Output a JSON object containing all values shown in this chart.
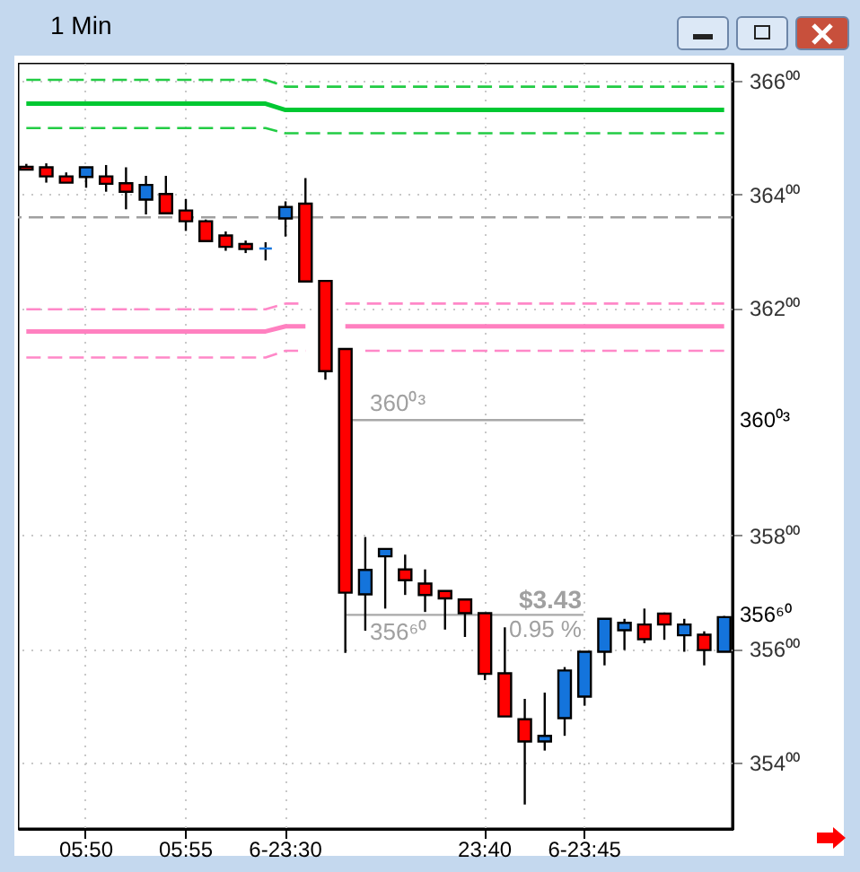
{
  "chart_data": {
    "type": "candlestick",
    "title": "1 Min",
    "categories": [
      null,
      null,
      null,
      "05:50",
      null,
      null,
      null,
      null,
      "05:55",
      null,
      null,
      null,
      null,
      "6-23:30",
      null,
      null,
      null,
      null,
      null,
      null,
      null,
      null,
      null,
      "23:40",
      null,
      null,
      null,
      null,
      "6-23:45",
      null,
      null,
      null,
      null,
      null,
      null,
      null
    ],
    "ohlc": [
      [
        364.49,
        364.54,
        364.44,
        364.44
      ],
      [
        364.48,
        364.55,
        364.21,
        364.32
      ],
      [
        364.32,
        364.39,
        364.21,
        364.21
      ],
      [
        364.31,
        364.48,
        364.12,
        364.48
      ],
      [
        364.32,
        364.52,
        364.05,
        364.19
      ],
      [
        364.2,
        364.48,
        363.74,
        364.05
      ],
      [
        363.91,
        364.33,
        363.65,
        364.17
      ],
      [
        364.01,
        364.33,
        363.65,
        363.67
      ],
      [
        363.72,
        363.92,
        363.36,
        363.53
      ],
      [
        363.53,
        363.56,
        363.18,
        363.18
      ],
      [
        363.28,
        363.35,
        363.01,
        363.08
      ],
      [
        363.13,
        363.19,
        362.97,
        363.04
      ],
      [
        363.05,
        363.16,
        362.84,
        363.05
      ],
      [
        363.58,
        363.88,
        363.26,
        363.78
      ],
      [
        363.84,
        364.29,
        362.47,
        362.47
      ],
      [
        362.48,
        362.48,
        360.74,
        360.89
      ],
      [
        361.28,
        361.28,
        355.93,
        356.99
      ],
      [
        356.96,
        357.97,
        356.32,
        357.39
      ],
      [
        357.63,
        357.76,
        356.71,
        357.76
      ],
      [
        357.4,
        357.66,
        356.95,
        357.21
      ],
      [
        357.15,
        357.4,
        356.65,
        356.95
      ],
      [
        357.02,
        357.02,
        356.34,
        356.89
      ],
      [
        356.87,
        356.87,
        356.21,
        356.63
      ],
      [
        356.63,
        356.63,
        355.45,
        355.56
      ],
      [
        355.57,
        356.38,
        354.81,
        354.81
      ],
      [
        354.76,
        355.12,
        353.26,
        354.37
      ],
      [
        354.37,
        355.23,
        354.21,
        354.47
      ],
      [
        354.78,
        355.68,
        354.47,
        355.62
      ],
      [
        355.16,
        355.95,
        355.0,
        355.95
      ],
      [
        355.95,
        356.53,
        355.71,
        356.53
      ],
      [
        356.33,
        356.53,
        355.98,
        356.46
      ],
      [
        356.43,
        356.71,
        356.1,
        356.17
      ],
      [
        356.62,
        356.64,
        356.16,
        356.43
      ],
      [
        356.24,
        356.53,
        355.95,
        356.43
      ],
      [
        356.25,
        356.31,
        355.71,
        355.98
      ],
      [
        355.95,
        356.58,
        355.95,
        356.56
      ]
    ],
    "colors": [
      "#ff0000",
      "#ff0000",
      "#ff0000",
      "#1474dc",
      "#ff0000",
      "#ff0000",
      "#1474dc",
      "#ff0000",
      "#ff0000",
      "#ff0000",
      "#ff0000",
      "#ff0000",
      "#1474dc",
      "#1474dc",
      "#ff0000",
      "#ff0000",
      "#ff0000",
      "#1474dc",
      "#1474dc",
      "#ff0000",
      "#ff0000",
      "#ff0000",
      "#ff0000",
      "#ff0000",
      "#ff0000",
      "#ff0000",
      "#1474dc",
      "#1474dc",
      "#1474dc",
      "#1474dc",
      "#1474dc",
      "#ff0000",
      "#ff0000",
      "#1474dc",
      "#ff0000",
      "#1474dc"
    ],
    "series": [
      {
        "type": "line",
        "color": "#22cc44",
        "line_style": "dashed",
        "values": [
          366.02,
          366.02,
          366.02,
          366.02,
          366.02,
          366.02,
          366.02,
          366.02,
          366.02,
          366.02,
          366.02,
          366.02,
          366.02,
          365.9,
          365.9,
          365.9,
          365.9,
          365.9,
          365.9,
          365.9,
          365.9,
          365.9,
          365.9,
          365.9,
          365.9,
          365.9,
          365.9,
          365.9,
          365.9,
          365.9,
          365.9,
          365.9,
          365.9,
          365.9,
          365.9,
          365.9
        ]
      },
      {
        "type": "line",
        "color": "#00c832",
        "line_style": "solid",
        "values": [
          365.6,
          365.6,
          365.6,
          365.6,
          365.6,
          365.6,
          365.6,
          365.6,
          365.6,
          365.6,
          365.6,
          365.6,
          365.6,
          365.49,
          365.49,
          365.49,
          365.49,
          365.49,
          365.49,
          365.49,
          365.49,
          365.49,
          365.49,
          365.49,
          365.49,
          365.49,
          365.49,
          365.49,
          365.49,
          365.49,
          365.49,
          365.49,
          365.49,
          365.49,
          365.49,
          365.49
        ]
      },
      {
        "type": "line",
        "color": "#22cc44",
        "line_style": "dashed",
        "values": [
          365.17,
          365.17,
          365.17,
          365.17,
          365.17,
          365.17,
          365.17,
          365.17,
          365.17,
          365.17,
          365.17,
          365.17,
          365.17,
          365.08,
          365.08,
          365.08,
          365.08,
          365.08,
          365.08,
          365.08,
          365.08,
          365.08,
          365.08,
          365.08,
          365.08,
          365.08,
          365.08,
          365.08,
          365.08,
          365.08,
          365.08,
          365.08,
          365.08,
          365.08,
          365.08,
          365.08
        ]
      },
      {
        "type": "line",
        "color": "#ff88c8",
        "line_style": "dashed",
        "values": [
          361.98,
          361.98,
          361.98,
          361.98,
          361.98,
          361.98,
          361.98,
          361.98,
          361.98,
          361.98,
          361.98,
          361.98,
          361.98,
          362.08,
          362.08,
          null,
          362.08,
          362.08,
          362.08,
          362.08,
          362.08,
          362.08,
          362.08,
          362.08,
          362.08,
          362.08,
          362.08,
          362.08,
          362.08,
          362.08,
          362.08,
          362.08,
          362.08,
          362.08,
          362.08,
          362.08
        ]
      },
      {
        "type": "line",
        "color": "#ff80c0",
        "line_style": "solid",
        "values": [
          361.59,
          361.59,
          361.59,
          361.59,
          361.59,
          361.59,
          361.59,
          361.59,
          361.59,
          361.59,
          361.59,
          361.59,
          361.59,
          361.68,
          361.68,
          null,
          361.68,
          361.68,
          361.68,
          361.68,
          361.68,
          361.68,
          361.68,
          361.68,
          361.68,
          361.68,
          361.68,
          361.68,
          361.68,
          361.68,
          361.68,
          361.68,
          361.68,
          361.68,
          361.68,
          361.68
        ]
      },
      {
        "type": "line",
        "color": "#ff88c8",
        "line_style": "dashed",
        "values": [
          361.13,
          361.13,
          361.13,
          361.13,
          361.13,
          361.13,
          361.13,
          361.13,
          361.13,
          361.13,
          361.13,
          361.13,
          361.13,
          361.25,
          361.25,
          null,
          null,
          361.25,
          361.25,
          361.25,
          361.25,
          361.25,
          361.25,
          361.25,
          361.25,
          361.25,
          361.25,
          361.25,
          361.25,
          361.25,
          361.25,
          361.25,
          361.25,
          361.25,
          361.25,
          361.25
        ]
      }
    ],
    "ref_lines": [
      {
        "axis": "y",
        "value": 363.6,
        "color": "#a0a0a0",
        "line_style": "dashed"
      },
      {
        "axis": "y",
        "value": 360.03,
        "label": "360⁰³",
        "color": "#a8a8a8"
      },
      {
        "axis": "y",
        "value": 356.6,
        "label": "356⁶⁰",
        "color": "#a8a8a8"
      }
    ],
    "annotations": [
      "$3.43",
      "0.95 %"
    ],
    "ylim": [
      352.83,
      366.32
    ],
    "yticks": [
      {
        "value": 354,
        "label": "354⁰⁰"
      },
      {
        "value": 356,
        "label": "356⁰⁰"
      },
      {
        "value": 358,
        "label": "358⁰⁰"
      },
      {
        "value": 362,
        "label": "362⁰⁰"
      },
      {
        "value": 364,
        "label": "364⁰⁰"
      },
      {
        "value": 366,
        "label": "366⁰⁰"
      }
    ],
    "grid": true
  }
}
